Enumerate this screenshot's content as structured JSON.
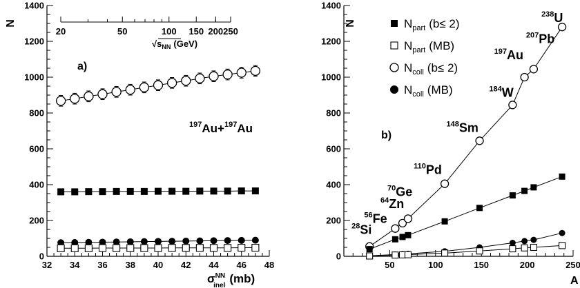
{
  "chart_data": [
    {
      "type": "scatter",
      "panel_label": "a)",
      "system_label": {
        "a1": "197",
        "e1": "Au+",
        "a2": "197",
        "e2": "Au"
      },
      "ylabel": "N",
      "xlabel": {
        "sym": "σ",
        "sup": "NN",
        "sub": "inel",
        "unit": "(mb)"
      },
      "xlim": [
        32,
        48
      ],
      "ylim": [
        0,
        1400
      ],
      "xticks": [
        32,
        34,
        36,
        38,
        40,
        42,
        44,
        46,
        48
      ],
      "yticks": [
        0,
        200,
        400,
        600,
        800,
        1000,
        1200,
        1400
      ],
      "top_axis": {
        "label_prefix": "√",
        "label_var": "s",
        "label_sub": "NN",
        "label_unit": "(GeV)",
        "ticks": [
          20,
          50,
          100,
          150,
          200,
          250
        ],
        "tick_labels": [
          "20",
          "50",
          "100",
          "150",
          "200",
          "250"
        ]
      },
      "x": [
        33,
        34,
        35,
        36,
        37,
        38,
        39,
        40,
        41,
        42,
        43,
        44,
        45,
        46,
        47
      ],
      "series": [
        {
          "marker": "open-circle",
          "values": [
            868,
            880,
            893,
            905,
            918,
            930,
            943,
            955,
            968,
            980,
            993,
            1005,
            1015,
            1025,
            1035
          ],
          "error": 30
        },
        {
          "marker": "filled-square",
          "values": [
            360,
            360,
            361,
            361,
            362,
            362,
            362,
            363,
            363,
            363,
            364,
            364,
            364,
            365,
            365
          ]
        },
        {
          "marker": "filled-circle",
          "values": [
            76,
            77,
            78,
            79,
            80,
            81,
            82,
            83,
            84,
            85,
            86,
            87,
            88,
            89,
            90
          ]
        },
        {
          "marker": "open-square",
          "values": [
            45,
            45,
            45,
            46,
            46,
            46,
            46,
            46,
            47,
            47,
            47,
            47,
            47,
            48,
            48
          ]
        }
      ]
    },
    {
      "type": "scatter",
      "panel_label": "b)",
      "ylabel": "N",
      "xlabel": "A",
      "xlim": [
        0,
        250
      ],
      "ylim": [
        0,
        1400
      ],
      "xticks": [
        50,
        100,
        150,
        200,
        250
      ],
      "yticks": [
        0,
        200,
        400,
        600,
        800,
        1000,
        1200,
        1400
      ],
      "legend": {
        "position": "top-left",
        "entries": [
          {
            "marker": "filled-square",
            "base": "N",
            "sub": "part",
            "suffix": "(b≤ 2)"
          },
          {
            "marker": "open-square",
            "base": "N",
            "sub": "part",
            "suffix": "(MB)"
          },
          {
            "marker": "open-circle",
            "base": "N",
            "sub": "coll",
            "suffix": "(b≤ 2)"
          },
          {
            "marker": "filled-circle",
            "base": "N",
            "sub": "coll",
            "suffix": "(MB)"
          }
        ]
      },
      "x": [
        28,
        56,
        64,
        70,
        110,
        148,
        184,
        197,
        207,
        238
      ],
      "nuclei": [
        {
          "mass": "28",
          "symbol": "Si"
        },
        {
          "mass": "56",
          "symbol": "Fe"
        },
        {
          "mass": "64",
          "symbol": "Zn"
        },
        {
          "mass": "70",
          "symbol": "Ge"
        },
        {
          "mass": "110",
          "symbol": "Pd"
        },
        {
          "mass": "148",
          "symbol": "Sm"
        },
        {
          "mass": "184",
          "symbol": "W"
        },
        {
          "mass": "197",
          "symbol": "Au"
        },
        {
          "mass": "207",
          "symbol": "Pb"
        },
        {
          "mass": "238",
          "symbol": "U"
        }
      ],
      "series": [
        {
          "marker": "open-circle",
          "values": [
            55,
            155,
            185,
            210,
            405,
            645,
            845,
            1000,
            1045,
            1280
          ]
        },
        {
          "marker": "filled-square",
          "values": [
            40,
            95,
            108,
            118,
            195,
            270,
            340,
            365,
            385,
            445
          ]
        },
        {
          "marker": "filled-circle",
          "values": [
            3,
            10,
            12,
            14,
            28,
            50,
            75,
            85,
            92,
            130
          ]
        },
        {
          "marker": "open-square",
          "values": [
            2,
            7,
            8,
            9,
            18,
            30,
            42,
            47,
            50,
            60
          ]
        }
      ]
    }
  ]
}
